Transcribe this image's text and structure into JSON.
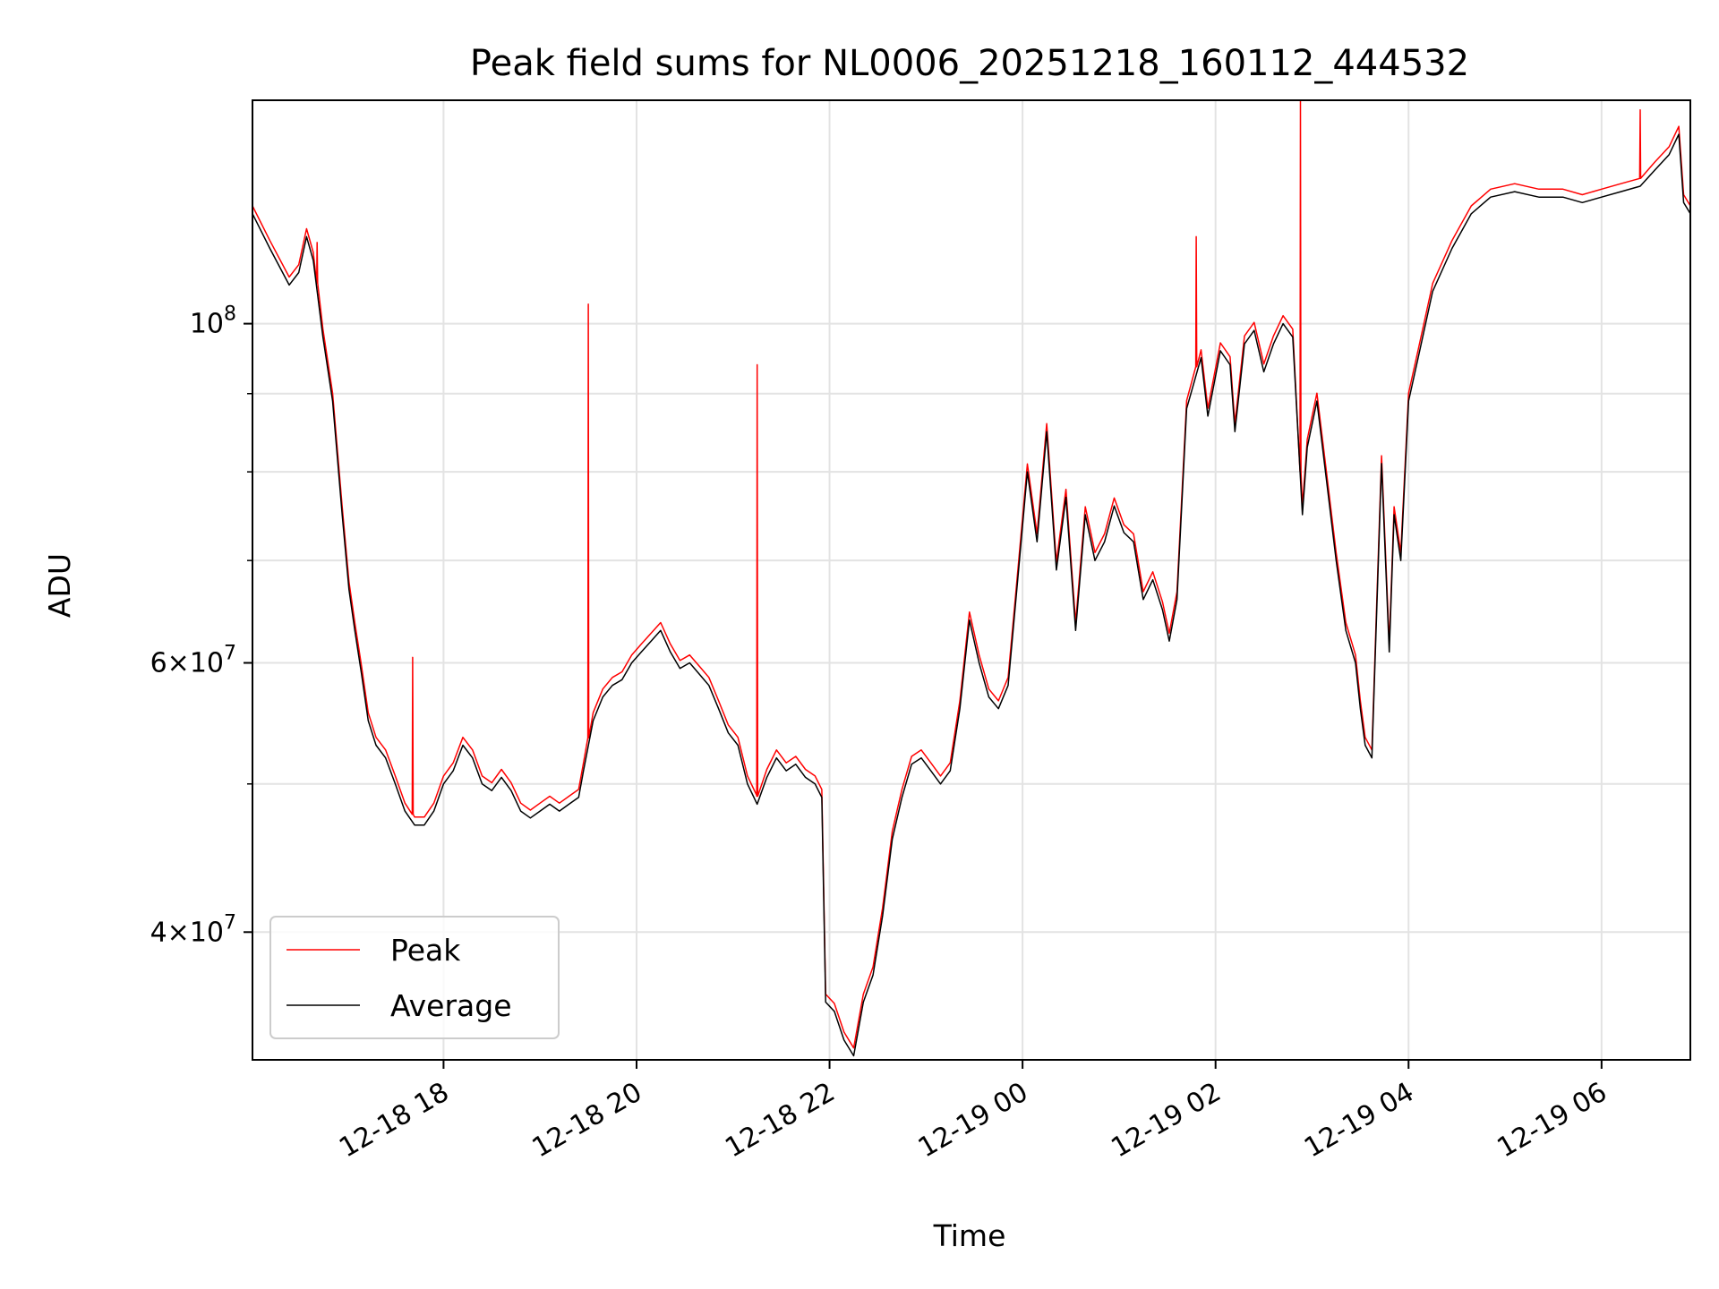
{
  "chart_data": {
    "type": "line",
    "title": "Peak field sums for NL0006_20251218_160112_444532",
    "xlabel": "Time",
    "ylabel": "ADU",
    "yscale": "log",
    "ylim": [
      33000000,
      140000000
    ],
    "xlim_hours": [
      -1.98,
      12.92
    ],
    "grid": true,
    "legend_location": "lower-left",
    "x_tick_labels": [
      "12-18 18",
      "12-18 20",
      "12-18 22",
      "12-19 00",
      "12-19 02",
      "12-19 04",
      "12-19 06"
    ],
    "x_tick_hours": [
      0,
      2,
      4,
      6,
      8,
      10,
      12
    ],
    "y_major_ticks": [
      {
        "value": 40000000,
        "mantissa": "4",
        "exponent": "7"
      },
      {
        "value": 60000000,
        "mantissa": "6",
        "exponent": "7"
      },
      {
        "value": 100000000,
        "mantissa": "",
        "exponent": "8"
      }
    ],
    "y_minor_ticks": [
      50000000,
      70000000,
      80000000,
      90000000
    ],
    "x_unit": "hours since 2025-12-18 18:00",
    "series": [
      {
        "name": "Peak",
        "color": "#ff0000",
        "spikes": [
          {
            "x": -1.31,
            "y": 113000000
          },
          {
            "x": -0.32,
            "y": 60500000
          },
          {
            "x": 1.5,
            "y": 103000000
          },
          {
            "x": 3.25,
            "y": 94000000
          },
          {
            "x": 7.8,
            "y": 114000000
          },
          {
            "x": 8.88,
            "y": 140000000
          },
          {
            "x": 12.4,
            "y": 138000000
          }
        ]
      },
      {
        "name": "Average",
        "color": "#000000",
        "points": [
          [
            -1.98,
            118000000
          ],
          [
            -1.8,
            112000000
          ],
          [
            -1.6,
            106000000
          ],
          [
            -1.5,
            108000000
          ],
          [
            -1.42,
            114000000
          ],
          [
            -1.35,
            110000000
          ],
          [
            -1.25,
            98000000
          ],
          [
            -1.15,
            89000000
          ],
          [
            -1.05,
            75000000
          ],
          [
            -0.98,
            67000000
          ],
          [
            -0.92,
            63000000
          ],
          [
            -0.85,
            59000000
          ],
          [
            -0.78,
            55000000
          ],
          [
            -0.7,
            53000000
          ],
          [
            -0.6,
            52000000
          ],
          [
            -0.5,
            50000000
          ],
          [
            -0.4,
            48000000
          ],
          [
            -0.3,
            47000000
          ],
          [
            -0.2,
            47000000
          ],
          [
            -0.1,
            48000000
          ],
          [
            0.0,
            50000000
          ],
          [
            0.1,
            51000000
          ],
          [
            0.2,
            53000000
          ],
          [
            0.3,
            52000000
          ],
          [
            0.4,
            50000000
          ],
          [
            0.5,
            49500000
          ],
          [
            0.6,
            50500000
          ],
          [
            0.7,
            49500000
          ],
          [
            0.8,
            48000000
          ],
          [
            0.9,
            47500000
          ],
          [
            1.0,
            48000000
          ],
          [
            1.1,
            48500000
          ],
          [
            1.2,
            48000000
          ],
          [
            1.3,
            48500000
          ],
          [
            1.4,
            49000000
          ],
          [
            1.45,
            51000000
          ],
          [
            1.55,
            55000000
          ],
          [
            1.65,
            57000000
          ],
          [
            1.75,
            58000000
          ],
          [
            1.85,
            58500000
          ],
          [
            1.95,
            60000000
          ],
          [
            2.05,
            61000000
          ],
          [
            2.15,
            62000000
          ],
          [
            2.25,
            63000000
          ],
          [
            2.35,
            61000000
          ],
          [
            2.45,
            59500000
          ],
          [
            2.55,
            60000000
          ],
          [
            2.65,
            59000000
          ],
          [
            2.75,
            58000000
          ],
          [
            2.85,
            56000000
          ],
          [
            2.95,
            54000000
          ],
          [
            3.05,
            53000000
          ],
          [
            3.15,
            50000000
          ],
          [
            3.25,
            48500000
          ],
          [
            3.35,
            50500000
          ],
          [
            3.45,
            52000000
          ],
          [
            3.55,
            51000000
          ],
          [
            3.65,
            51500000
          ],
          [
            3.75,
            50500000
          ],
          [
            3.85,
            50000000
          ],
          [
            3.92,
            49000000
          ],
          [
            3.96,
            36000000
          ],
          [
            4.05,
            35500000
          ],
          [
            4.15,
            34000000
          ],
          [
            4.25,
            33200000
          ],
          [
            4.35,
            36000000
          ],
          [
            4.45,
            37500000
          ],
          [
            4.55,
            41000000
          ],
          [
            4.65,
            46000000
          ],
          [
            4.75,
            49000000
          ],
          [
            4.85,
            51500000
          ],
          [
            4.95,
            52000000
          ],
          [
            5.05,
            51000000
          ],
          [
            5.15,
            50000000
          ],
          [
            5.25,
            51000000
          ],
          [
            5.35,
            56000000
          ],
          [
            5.45,
            64000000
          ],
          [
            5.55,
            60000000
          ],
          [
            5.65,
            57000000
          ],
          [
            5.75,
            56000000
          ],
          [
            5.85,
            58000000
          ],
          [
            5.95,
            68000000
          ],
          [
            6.05,
            80000000
          ],
          [
            6.15,
            72000000
          ],
          [
            6.25,
            85000000
          ],
          [
            6.35,
            69000000
          ],
          [
            6.45,
            77000000
          ],
          [
            6.55,
            63000000
          ],
          [
            6.65,
            75000000
          ],
          [
            6.75,
            70000000
          ],
          [
            6.85,
            72000000
          ],
          [
            6.95,
            76000000
          ],
          [
            7.05,
            73000000
          ],
          [
            7.15,
            72000000
          ],
          [
            7.25,
            66000000
          ],
          [
            7.35,
            68000000
          ],
          [
            7.45,
            65000000
          ],
          [
            7.52,
            62000000
          ],
          [
            7.6,
            66000000
          ],
          [
            7.7,
            88000000
          ],
          [
            7.85,
            95000000
          ],
          [
            7.92,
            87000000
          ],
          [
            8.05,
            96000000
          ],
          [
            8.15,
            94000000
          ],
          [
            8.2,
            85000000
          ],
          [
            8.3,
            97000000
          ],
          [
            8.4,
            99000000
          ],
          [
            8.5,
            93000000
          ],
          [
            8.6,
            97000000
          ],
          [
            8.7,
            100000000
          ],
          [
            8.8,
            98000000
          ],
          [
            8.9,
            75000000
          ],
          [
            8.95,
            83000000
          ],
          [
            9.05,
            89000000
          ],
          [
            9.15,
            79000000
          ],
          [
            9.25,
            70000000
          ],
          [
            9.35,
            63000000
          ],
          [
            9.45,
            60000000
          ],
          [
            9.5,
            56000000
          ],
          [
            9.55,
            53000000
          ],
          [
            9.62,
            52000000
          ],
          [
            9.72,
            81000000
          ],
          [
            9.8,
            61000000
          ],
          [
            9.85,
            75000000
          ],
          [
            9.92,
            70000000
          ],
          [
            10.0,
            89000000
          ],
          [
            10.1,
            95000000
          ],
          [
            10.25,
            105000000
          ],
          [
            10.45,
            112000000
          ],
          [
            10.65,
            118000000
          ],
          [
            10.85,
            121000000
          ],
          [
            11.1,
            122000000
          ],
          [
            11.35,
            121000000
          ],
          [
            11.6,
            121000000
          ],
          [
            11.8,
            120000000
          ],
          [
            12.0,
            121000000
          ],
          [
            12.2,
            122000000
          ],
          [
            12.4,
            123000000
          ],
          [
            12.55,
            126000000
          ],
          [
            12.7,
            129000000
          ],
          [
            12.8,
            133000000
          ],
          [
            12.85,
            120000000
          ],
          [
            12.92,
            118000000
          ]
        ]
      }
    ]
  }
}
